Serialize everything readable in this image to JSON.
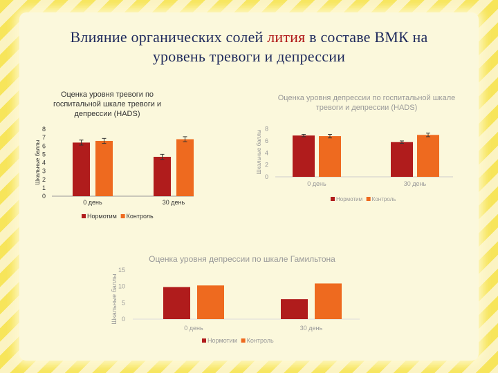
{
  "slide": {
    "title_line1_a": "Влияние органических солей ",
    "title_line1_hl": "лития",
    "title_line1_b": " в составе ВМК на",
    "title_line2": "уровень тревоги и депрессии",
    "colors": {
      "title": "#1f2a5c",
      "highlight": "#b01818",
      "series_1": "#b01c1c",
      "series_2": "#ee6a1f"
    }
  },
  "chart_data": [
    {
      "type": "bar",
      "title": "Оценка уровня тревоги по госпитальной шкале тревоги и депрессии (HADS)",
      "title_lines": [
        "Оценка уровня тревоги по",
        "госпитальной шкале тревоги и",
        "депрессии (HADS)"
      ],
      "ylabel": "Шкальные баллы",
      "xlabel": "",
      "categories": [
        "0 день",
        "30 день"
      ],
      "series": [
        {
          "name": "Нормотим",
          "values": [
            6.4,
            4.7
          ],
          "errors": [
            0.3,
            0.3
          ]
        },
        {
          "name": "Контроль",
          "values": [
            6.6,
            6.8
          ],
          "errors": [
            0.3,
            0.3
          ]
        }
      ],
      "yticks": [
        "0",
        "1",
        "2",
        "3",
        "4",
        "5",
        "6",
        "7",
        "8"
      ],
      "ylim": [
        0,
        8
      ],
      "grid": false,
      "legend": "bottom"
    },
    {
      "type": "bar",
      "title": "Оценка уровня депрессии по госпитальной шкале тревоги и депрессии (HADS)",
      "title_lines": [
        "Оценка уровня депрессии по госпитальной шкале",
        "тревоги и депрессии (HADS)"
      ],
      "ylabel": "Шкальные баллы",
      "xlabel": "",
      "categories": [
        "0 день",
        "30 день"
      ],
      "series": [
        {
          "name": "Нормотим",
          "values": [
            6.9,
            5.8
          ],
          "errors": [
            0.2,
            0.2
          ]
        },
        {
          "name": "Контроль",
          "values": [
            6.8,
            7.0
          ],
          "errors": [
            0.3,
            0.3
          ]
        }
      ],
      "yticks": [
        "0",
        "2",
        "4",
        "6",
        "8"
      ],
      "ylim": [
        0,
        9
      ],
      "grid": false,
      "legend": "bottom"
    },
    {
      "type": "bar",
      "title": "Оценка уровня депрессии по шкале Гамильтона",
      "title_lines": [
        "Оценка уровня депрессии по шкале Гамильтона"
      ],
      "ylabel": "Шкальные баллы",
      "xlabel": "",
      "categories": [
        "0 день",
        "30 день"
      ],
      "series": [
        {
          "name": "Нормотим",
          "values": [
            9.8,
            6.1
          ]
        },
        {
          "name": "Контроль",
          "values": [
            10.3,
            10.9
          ]
        }
      ],
      "yticks": [
        "0",
        "5",
        "10",
        "15"
      ],
      "ylim": [
        0,
        15
      ],
      "grid": false,
      "legend": "bottom"
    }
  ]
}
